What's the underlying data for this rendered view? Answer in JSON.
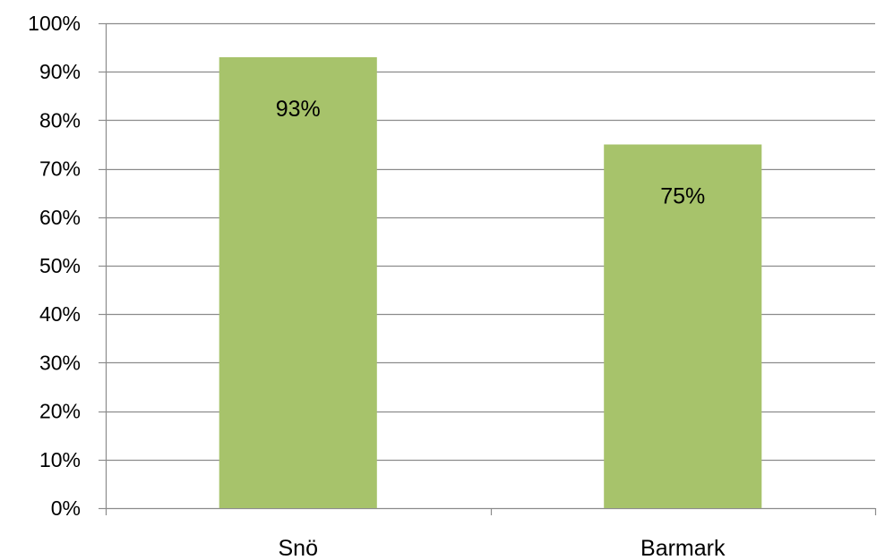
{
  "chart_data": {
    "type": "bar",
    "categories": [
      "Snö",
      "Barmark"
    ],
    "values": [
      93,
      75
    ],
    "data_labels": [
      "93%",
      "75%"
    ],
    "title": "",
    "xlabel": "",
    "ylabel": "",
    "ylim": [
      0,
      100
    ],
    "y_ticks": [
      0,
      10,
      20,
      30,
      40,
      50,
      60,
      70,
      80,
      90,
      100
    ],
    "y_tick_labels": [
      "0%",
      "10%",
      "20%",
      "30%",
      "40%",
      "50%",
      "60%",
      "70%",
      "80%",
      "90%",
      "100%"
    ],
    "grid": true,
    "legend": "none",
    "bar_color": "#a7c36b",
    "gridline_color": "#8c8c8c"
  }
}
